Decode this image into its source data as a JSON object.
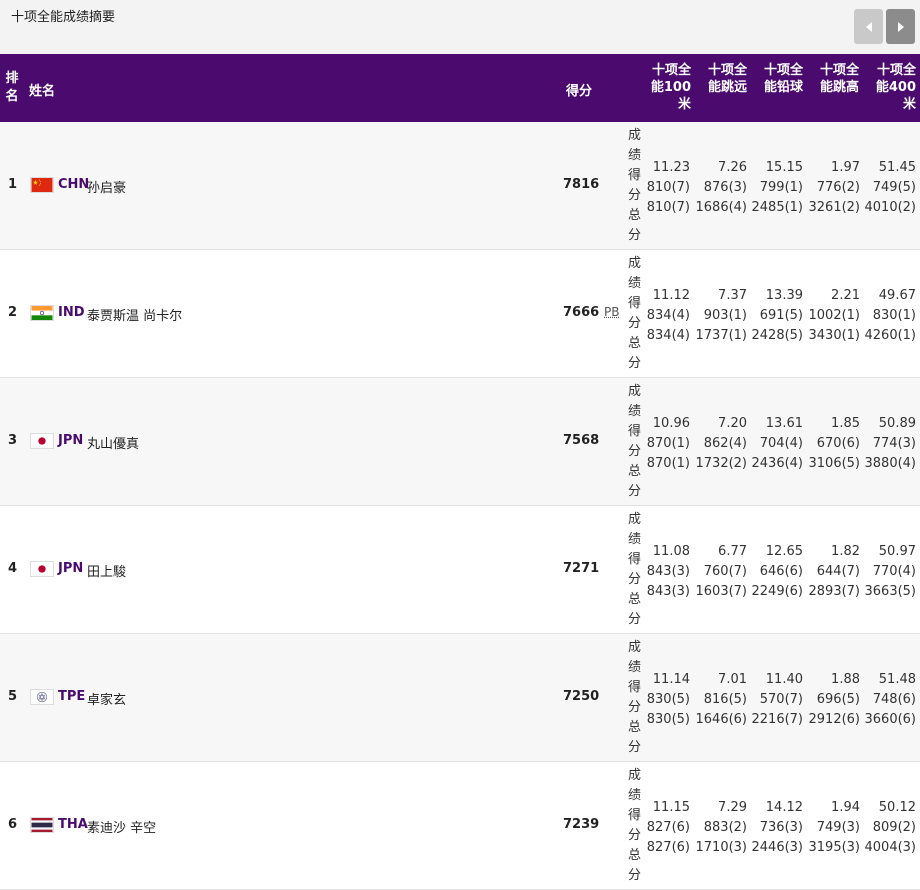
{
  "page_title": "十项全能成绩摘要",
  "colors": {
    "header_bg": "#4a0a6e",
    "nation": "#4a0a6e"
  },
  "nav": {
    "prev_icon": "chevron-left-icon",
    "next_icon": "chevron-right-icon"
  },
  "columns": {
    "rank": "排名",
    "name": "姓名",
    "score": "得分",
    "events": [
      "十项全能100米",
      "十项全能跳远",
      "十项全能铅球",
      "十项全能跳高",
      "十项全能400米"
    ]
  },
  "row_label": "成绩得分总分",
  "rows": [
    {
      "rank": "1",
      "flag": "china-flag-icon",
      "country": "CHN",
      "name": "孙启豪",
      "score": "7816",
      "pb": "",
      "events": [
        {
          "mark": "11.23",
          "points": "810(7)",
          "total": "810(7)"
        },
        {
          "mark": "7.26",
          "points": "876(3)",
          "total": "1686(4)"
        },
        {
          "mark": "15.15",
          "points": "799(1)",
          "total": "2485(1)"
        },
        {
          "mark": "1.97",
          "points": "776(2)",
          "total": "3261(2)"
        },
        {
          "mark": "51.45",
          "points": "749(5)",
          "total": "4010(2)"
        }
      ]
    },
    {
      "rank": "2",
      "flag": "india-flag-icon",
      "country": "IND",
      "name": "泰贾斯温 尚卡尔",
      "score": "7666",
      "pb": "PB",
      "events": [
        {
          "mark": "11.12",
          "points": "834(4)",
          "total": "834(4)"
        },
        {
          "mark": "7.37",
          "points": "903(1)",
          "total": "1737(1)"
        },
        {
          "mark": "13.39",
          "points": "691(5)",
          "total": "2428(5)"
        },
        {
          "mark": "2.21",
          "points": "1002(1)",
          "total": "3430(1)"
        },
        {
          "mark": "49.67",
          "points": "830(1)",
          "total": "4260(1)"
        }
      ]
    },
    {
      "rank": "3",
      "flag": "japan-flag-icon",
      "country": "JPN",
      "name": "丸山優真",
      "score": "7568",
      "pb": "",
      "events": [
        {
          "mark": "10.96",
          "points": "870(1)",
          "total": "870(1)"
        },
        {
          "mark": "7.20",
          "points": "862(4)",
          "total": "1732(2)"
        },
        {
          "mark": "13.61",
          "points": "704(4)",
          "total": "2436(4)"
        },
        {
          "mark": "1.85",
          "points": "670(6)",
          "total": "3106(5)"
        },
        {
          "mark": "50.89",
          "points": "774(3)",
          "total": "3880(4)"
        }
      ]
    },
    {
      "rank": "4",
      "flag": "japan-flag-icon",
      "country": "JPN",
      "name": "田上駿",
      "score": "7271",
      "pb": "",
      "events": [
        {
          "mark": "11.08",
          "points": "843(3)",
          "total": "843(3)"
        },
        {
          "mark": "6.77",
          "points": "760(7)",
          "total": "1603(7)"
        },
        {
          "mark": "12.65",
          "points": "646(6)",
          "total": "2249(6)"
        },
        {
          "mark": "1.82",
          "points": "644(7)",
          "total": "2893(7)"
        },
        {
          "mark": "50.97",
          "points": "770(4)",
          "total": "3663(5)"
        }
      ]
    },
    {
      "rank": "5",
      "flag": "chinese-taipei-flag-icon",
      "country": "TPE",
      "name": "卓家玄",
      "score": "7250",
      "pb": "",
      "events": [
        {
          "mark": "11.14",
          "points": "830(5)",
          "total": "830(5)"
        },
        {
          "mark": "7.01",
          "points": "816(5)",
          "total": "1646(6)"
        },
        {
          "mark": "11.40",
          "points": "570(7)",
          "total": "2216(7)"
        },
        {
          "mark": "1.88",
          "points": "696(5)",
          "total": "2912(6)"
        },
        {
          "mark": "51.48",
          "points": "748(6)",
          "total": "3660(6)"
        }
      ]
    },
    {
      "rank": "6",
      "flag": "thailand-flag-icon",
      "country": "THA",
      "name": "素迪沙 辛空",
      "score": "7239",
      "pb": "",
      "events": [
        {
          "mark": "11.15",
          "points": "827(6)",
          "total": "827(6)"
        },
        {
          "mark": "7.29",
          "points": "883(2)",
          "total": "1710(3)"
        },
        {
          "mark": "14.12",
          "points": "736(3)",
          "total": "2446(3)"
        },
        {
          "mark": "1.94",
          "points": "749(3)",
          "total": "3195(3)"
        },
        {
          "mark": "50.12",
          "points": "809(2)",
          "total": "4004(3)"
        }
      ]
    }
  ]
}
